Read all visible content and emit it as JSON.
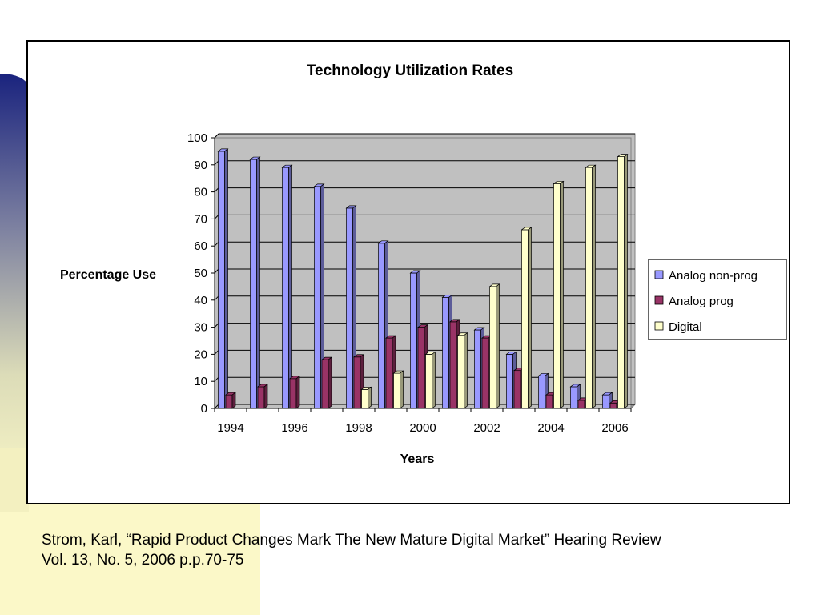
{
  "colors": {
    "analog_non_prog": "#9999ff",
    "analog_prog": "#993366",
    "digital": "#ffffcc",
    "plot_background": "#c0c0c0",
    "slide_sidebar_top": "#1a237e",
    "slide_sidebar_bottom": "#fbf8c8"
  },
  "chart_data": {
    "type": "bar",
    "style": "3d-clustered-column",
    "title": "Technology Utilization Rates",
    "xlabel": "Years",
    "ylabel": "Percentage Use",
    "ylim": [
      0,
      100
    ],
    "yticks": [
      0,
      10,
      20,
      30,
      40,
      50,
      60,
      70,
      80,
      90,
      100
    ],
    "grid": true,
    "legend_position": "right",
    "categories": [
      "1994",
      "1995",
      "1996",
      "1997",
      "1998",
      "1999",
      "2000",
      "2001",
      "2002",
      "2003",
      "2004",
      "2005",
      "2006"
    ],
    "x_tick_labels": [
      "1994",
      "1996",
      "1998",
      "2000",
      "2002",
      "2004",
      "2006"
    ],
    "series": [
      {
        "name": "Analog non-prog",
        "color": "#9999ff",
        "values": [
          95,
          92,
          89,
          82,
          74,
          61,
          50,
          41,
          29,
          20,
          12,
          8,
          5
        ]
      },
      {
        "name": "Analog prog",
        "color": "#993366",
        "values": [
          5,
          8,
          11,
          18,
          19,
          26,
          30,
          32,
          26,
          14,
          5,
          3,
          2
        ]
      },
      {
        "name": "Digital",
        "color": "#ffffcc",
        "values": [
          0,
          0,
          0,
          0,
          7,
          13,
          20,
          27,
          45,
          66,
          83,
          89,
          93
        ]
      }
    ]
  },
  "caption": {
    "line1": "Strom, Karl, “Rapid Product Changes Mark The New Mature Digital Market” Hearing Review",
    "line2": "Vol. 13, No. 5, 2006 p.p.70-75"
  }
}
